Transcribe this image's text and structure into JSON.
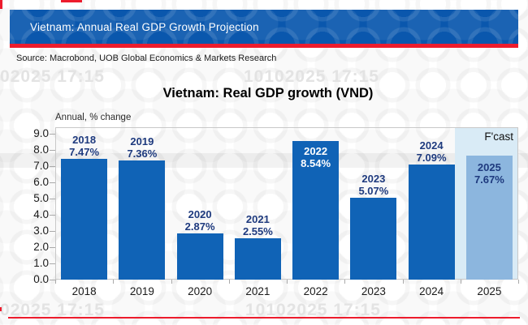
{
  "header": {
    "title": "Vietnam: Annual Real GDP Growth Projection"
  },
  "source_line": "Source: Macrobond, UOB Global Economics & Markets Research",
  "watermark": {
    "text": "10102025 17:15"
  },
  "chart_data": {
    "type": "bar",
    "title": "Vietnam: Real GDP growth (VND)",
    "ylabel": "Annual, % change",
    "xlabel": "",
    "ylim": [
      0.0,
      9.0
    ],
    "ytick_step": 1.0,
    "yticks": [
      "9.0",
      "8.0",
      "7.0",
      "6.0",
      "5.0",
      "4.0",
      "3.0",
      "2.0",
      "1.0",
      "0.0"
    ],
    "grid": false,
    "categories": [
      "2018",
      "2019",
      "2020",
      "2021",
      "2022",
      "2023",
      "2024",
      "2025"
    ],
    "values": [
      7.47,
      7.36,
      2.87,
      2.55,
      8.54,
      5.07,
      7.09,
      7.67
    ],
    "value_labels": [
      "7.47%",
      "7.36%",
      "2.87%",
      "2.55%",
      "8.54%",
      "5.07%",
      "7.09%",
      "7.67%"
    ],
    "label_placement": [
      "above",
      "above",
      "above",
      "above",
      "inside-white",
      "above",
      "above",
      "inside-navy"
    ],
    "forecast": {
      "label": "F'cast",
      "year": "2025",
      "value": 7.67
    },
    "colors": {
      "bar": "#1063b6",
      "forecast_bar": "#8cb6de",
      "forecast_background": "#d9ebf6",
      "label_navy": "#1e3a7e",
      "header_blue": "#0a57ad",
      "accent_red": "#ed1c2d"
    }
  }
}
